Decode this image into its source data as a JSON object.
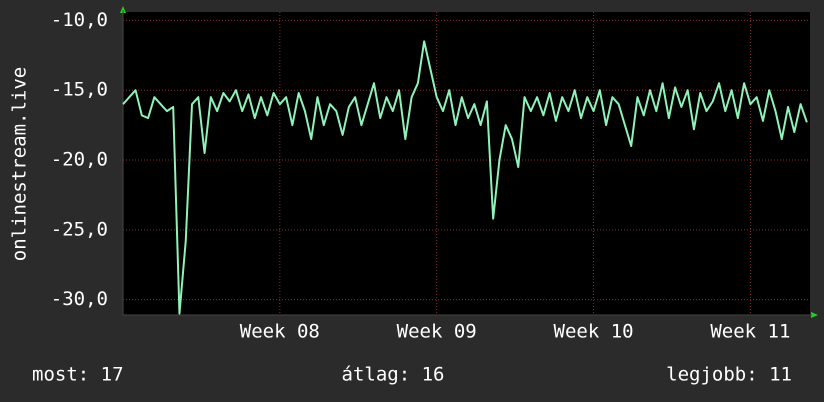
{
  "chart_data": {
    "type": "line",
    "ylabel": "onlinestream.live",
    "x": [
      7,
      7.04,
      7.08,
      7.12,
      7.16,
      7.2,
      7.24,
      7.28,
      7.32,
      7.36,
      7.4,
      7.44,
      7.48,
      7.52,
      7.56,
      7.6,
      7.64,
      7.68,
      7.72,
      7.76,
      7.8,
      7.84,
      7.88,
      7.92,
      7.96,
      8,
      8.04,
      8.08,
      8.12,
      8.16,
      8.2,
      8.24,
      8.28,
      8.32,
      8.36,
      8.4,
      8.44,
      8.48,
      8.52,
      8.56,
      8.6,
      8.64,
      8.68,
      8.72,
      8.76,
      8.8,
      8.84,
      8.88,
      8.92,
      8.96,
      9,
      9.04,
      9.08,
      9.12,
      9.16,
      9.2,
      9.24,
      9.28,
      9.32,
      9.36,
      9.4,
      9.44,
      9.48,
      9.52,
      9.56,
      9.6,
      9.64,
      9.68,
      9.72,
      9.76,
      9.8,
      9.84,
      9.88,
      9.92,
      9.96,
      10,
      10.04,
      10.08,
      10.12,
      10.16,
      10.2,
      10.24,
      10.28,
      10.32,
      10.36,
      10.4,
      10.44,
      10.48,
      10.52,
      10.56,
      10.6,
      10.64,
      10.68,
      10.72,
      10.76,
      10.8,
      10.84,
      10.88,
      10.92,
      10.96,
      11,
      11.04,
      11.08,
      11.12,
      11.16,
      11.2,
      11.24,
      11.28,
      11.32,
      11.36
    ],
    "series": [
      {
        "color": "#8ef2b9",
        "values": [
          -16,
          -15.5,
          -15,
          -16.8,
          -17,
          -15.5,
          -16,
          -16.5,
          -16.2,
          -31,
          -25.8,
          -16,
          -15.5,
          -19.5,
          -15.5,
          -16.5,
          -15.2,
          -15.8,
          -15,
          -16.5,
          -15.3,
          -17,
          -15.5,
          -16.8,
          -15.2,
          -16,
          -15.5,
          -17.5,
          -15.2,
          -16.5,
          -18.5,
          -15.5,
          -17.5,
          -16,
          -16.5,
          -18.2,
          -16.2,
          -15.5,
          -17.5,
          -16,
          -14.5,
          -17,
          -15.5,
          -16.5,
          -15,
          -18.5,
          -15.5,
          -14.5,
          -11.5,
          -13.5,
          -15.5,
          -16.5,
          -15,
          -17.5,
          -15.5,
          -17,
          -16,
          -17.5,
          -15.8,
          -24.2,
          -20,
          -17.5,
          -18.5,
          -20.5,
          -15.5,
          -16.5,
          -15.5,
          -16.8,
          -15.2,
          -17.2,
          -15.5,
          -16.5,
          -15,
          -17,
          -15.5,
          -16.5,
          -15,
          -17.5,
          -15.5,
          -16,
          -17.5,
          -19,
          -15.5,
          -16.8,
          -15,
          -16.5,
          -14.5,
          -17,
          -14.8,
          -16.2,
          -15,
          -17.8,
          -15.2,
          -16.5,
          -15.8,
          -14.5,
          -16.5,
          -15,
          -17,
          -14.5,
          -16,
          -15.5,
          -17.2,
          -15,
          -16.5,
          -18.5,
          -16.2,
          -18,
          -16,
          -17.3
        ]
      }
    ],
    "xlim": [
      7,
      11.38
    ],
    "xticks": [
      {
        "value": 8,
        "label": "Week 08"
      },
      {
        "value": 9,
        "label": "Week 09"
      },
      {
        "value": 10,
        "label": "Week 10"
      },
      {
        "value": 11,
        "label": "Week 11"
      }
    ],
    "ylim": [
      -31.1,
      -9.4
    ],
    "yticks": [
      {
        "value": -10,
        "label": "-10,0"
      },
      {
        "value": -15,
        "label": "-15,0"
      },
      {
        "value": -20,
        "label": "-20,0"
      },
      {
        "value": -25,
        "label": "-25,0"
      },
      {
        "value": -30,
        "label": "-30,0"
      }
    ],
    "grid": true,
    "footer": [
      "most: 17",
      "átlag: 16",
      "legjobb: 11"
    ]
  }
}
